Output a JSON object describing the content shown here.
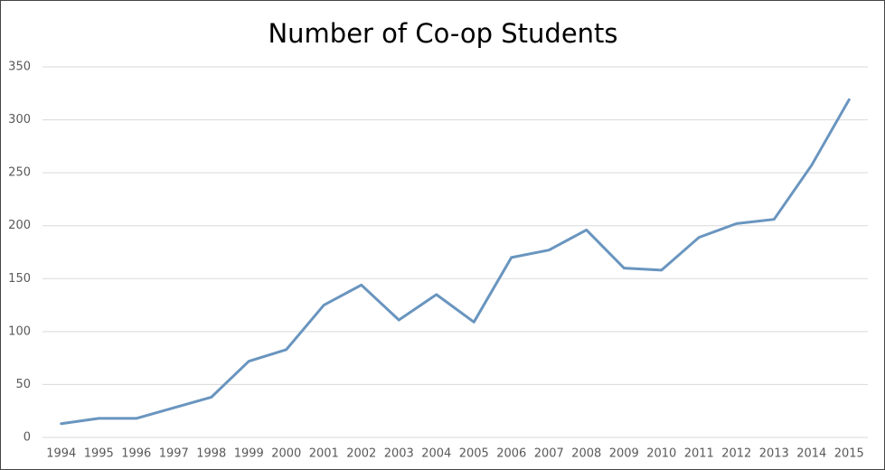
{
  "chart_data": {
    "type": "line",
    "title": "Number of Co-op Students",
    "categories": [
      "1994",
      "1995",
      "1996",
      "1997",
      "1998",
      "1999",
      "2000",
      "2001",
      "2002",
      "2003",
      "2004",
      "2005",
      "2006",
      "2007",
      "2008",
      "2009",
      "2010",
      "2011",
      "2012",
      "2013",
      "2014",
      "2015"
    ],
    "values": [
      13,
      18,
      18,
      28,
      38,
      72,
      83,
      125,
      144,
      111,
      135,
      109,
      170,
      177,
      196,
      160,
      158,
      189,
      202,
      206,
      257,
      319
    ],
    "color": "#6995bf",
    "ylim": [
      0,
      350
    ],
    "yticks": [
      0,
      50,
      100,
      150,
      200,
      250,
      300,
      350
    ],
    "grid": true
  }
}
